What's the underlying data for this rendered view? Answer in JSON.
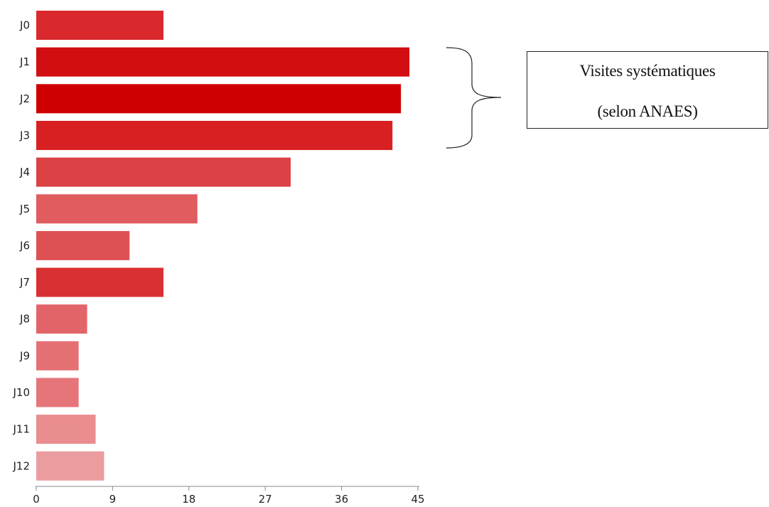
{
  "chart_data": {
    "type": "bar",
    "orientation": "horizontal",
    "categories": [
      "J0",
      "J1",
      "J2",
      "J3",
      "J4",
      "J5",
      "J6",
      "J7",
      "J8",
      "J9",
      "J10",
      "J11",
      "J12"
    ],
    "values": [
      15,
      44,
      43,
      42,
      30,
      19,
      11,
      15,
      6,
      5,
      5,
      7,
      8
    ],
    "colors": [
      "#d9292d",
      "#d20e12",
      "#cf0000",
      "#d81f22",
      "#db4145",
      "#e15c5f",
      "#dd5154",
      "#d93133",
      "#e36468",
      "#e57074",
      "#e57579",
      "#ea8d8f",
      "#eb9c9f"
    ],
    "xlim": [
      0,
      45
    ],
    "xticks": [
      "0",
      "9",
      "18",
      "27",
      "36",
      "45"
    ],
    "title": "",
    "xlabel": "",
    "ylabel": "",
    "grid": false,
    "legend": "none"
  },
  "annotation": {
    "line1": "Visites systématiques",
    "line2": "(selon ANAES)",
    "bracket_spans": [
      "J1",
      "J3"
    ]
  }
}
